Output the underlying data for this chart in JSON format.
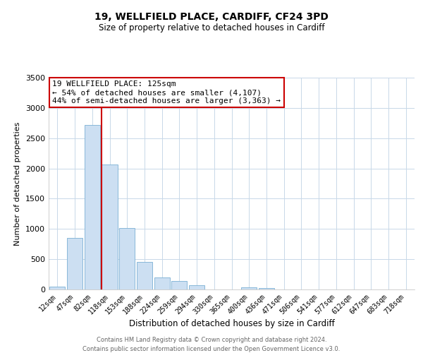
{
  "title": "19, WELLFIELD PLACE, CARDIFF, CF24 3PD",
  "subtitle": "Size of property relative to detached houses in Cardiff",
  "xlabel": "Distribution of detached houses by size in Cardiff",
  "ylabel": "Number of detached properties",
  "bar_labels": [
    "12sqm",
    "47sqm",
    "82sqm",
    "118sqm",
    "153sqm",
    "188sqm",
    "224sqm",
    "259sqm",
    "294sqm",
    "330sqm",
    "365sqm",
    "400sqm",
    "436sqm",
    "471sqm",
    "506sqm",
    "541sqm",
    "577sqm",
    "612sqm",
    "647sqm",
    "683sqm",
    "718sqm"
  ],
  "bar_values": [
    50,
    850,
    2720,
    2070,
    1010,
    455,
    200,
    145,
    65,
    0,
    0,
    35,
    20,
    0,
    0,
    0,
    0,
    0,
    0,
    0,
    0
  ],
  "bar_color": "#ccdff2",
  "bar_edge_color": "#7aafd4",
  "marker_line_color": "#cc0000",
  "annotation_line1": "19 WELLFIELD PLACE: 125sqm",
  "annotation_line2": "← 54% of detached houses are smaller (4,107)",
  "annotation_line3": "44% of semi-detached houses are larger (3,363) →",
  "annotation_box_facecolor": "#ffffff",
  "annotation_box_edgecolor": "#cc0000",
  "ylim": [
    0,
    3500
  ],
  "yticks": [
    0,
    500,
    1000,
    1500,
    2000,
    2500,
    3000,
    3500
  ],
  "footer1": "Contains HM Land Registry data © Crown copyright and database right 2024.",
  "footer2": "Contains public sector information licensed under the Open Government Licence v3.0.",
  "background_color": "#ffffff",
  "grid_color": "#c8d8e8",
  "title_fontsize": 10,
  "subtitle_fontsize": 8.5,
  "annotation_fontsize": 8,
  "xlabel_fontsize": 8.5,
  "ylabel_fontsize": 8,
  "xtick_fontsize": 7,
  "ytick_fontsize": 8,
  "footer_fontsize": 6,
  "footer_color": "#666666"
}
